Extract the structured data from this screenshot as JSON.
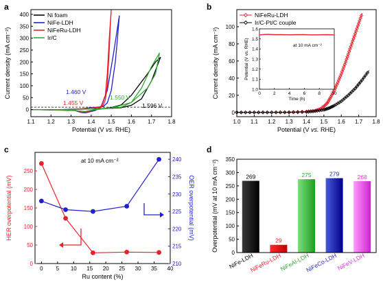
{
  "colors": {
    "black": "#000000",
    "red": "#e8202a",
    "blue": "#1f1fcf",
    "green": "#2fa82f",
    "gray": "#555555"
  },
  "chart_data": [
    {
      "panel": "a",
      "type": "line",
      "xlabel_pre": "Potential (V ",
      "xlabel_vs": "vs.",
      "xlabel_post": " RHE)",
      "ylabel": "Current density (mA cm⁻²)",
      "xlim": [
        1.1,
        1.8
      ],
      "ylim": [
        -30,
        420
      ],
      "xticks": [
        "1.1",
        "1.2",
        "1.3",
        "1.4",
        "1.5",
        "1.6",
        "1.7",
        "1.8"
      ],
      "yticks": [
        "0",
        "50",
        "100",
        "150",
        "200",
        "250",
        "300",
        "350",
        "400"
      ],
      "legend_position": "top-left",
      "legend": [
        "Ni foam",
        "NiFe-LDH",
        "NiFeRu-LDH",
        "Ir/C"
      ],
      "reference_line": 10,
      "annotations": [
        {
          "text": "1.460 V",
          "series": "NiFe-LDH"
        },
        {
          "text": "1.455 V",
          "series": "NiFeRu-LDH"
        },
        {
          "text": "1.550 V",
          "series": "Ir/C"
        },
        {
          "text": "1.596 V",
          "series": "Ni foam"
        }
      ],
      "series": [
        {
          "name": "Ni foam",
          "color": "black",
          "x": [
            1.1,
            1.25,
            1.35,
            1.4,
            1.45,
            1.5,
            1.55,
            1.6,
            1.65,
            1.7,
            1.745,
            1.72,
            1.68,
            1.6,
            1.55,
            1.5,
            1.45,
            1.4,
            1.37,
            1.35,
            1.32,
            1.25,
            1.1
          ],
          "y": [
            0,
            0,
            3,
            8,
            4,
            5,
            8,
            18,
            45,
            120,
            220,
            200,
            150,
            60,
            20,
            8,
            3,
            -4,
            -10,
            -12,
            -4,
            -2,
            0
          ]
        },
        {
          "name": "NiFe-LDH",
          "color": "blue",
          "x": [
            1.1,
            1.3,
            1.35,
            1.4,
            1.43,
            1.46,
            1.48,
            1.5,
            1.52,
            1.53,
            1.54,
            1.51,
            1.48,
            1.45,
            1.42,
            1.4,
            1.37,
            1.35,
            1.32,
            1.1
          ],
          "y": [
            0,
            0,
            2,
            8,
            10,
            12,
            28,
            80,
            200,
            290,
            395,
            230,
            80,
            10,
            -4,
            -8,
            -14,
            -12,
            -4,
            0
          ]
        },
        {
          "name": "NiFeRu-LDH",
          "color": "red",
          "x": [
            1.1,
            1.3,
            1.35,
            1.38,
            1.42,
            1.45,
            1.46,
            1.47,
            1.48,
            1.49,
            1.495,
            1.5,
            1.49,
            1.48,
            1.47,
            1.45,
            1.42,
            1.4,
            1.37,
            1.35,
            1.32,
            1.1
          ],
          "y": [
            0,
            0,
            2,
            5,
            8,
            10,
            18,
            40,
            100,
            250,
            350,
            420,
            300,
            150,
            60,
            15,
            2,
            -5,
            -12,
            -10,
            -3,
            0
          ]
        },
        {
          "name": "Ir/C",
          "color": "green",
          "x": [
            1.1,
            1.3,
            1.4,
            1.45,
            1.5,
            1.55,
            1.6,
            1.65,
            1.7,
            1.74,
            1.72,
            1.68,
            1.6,
            1.5,
            1.45,
            1.4,
            1.37,
            1.34,
            1.3,
            1.1
          ],
          "y": [
            0,
            0,
            2,
            4,
            6,
            10,
            30,
            90,
            180,
            238,
            150,
            90,
            30,
            6,
            2,
            -3,
            -8,
            -6,
            -2,
            0
          ]
        }
      ]
    },
    {
      "panel": "b",
      "type": "line",
      "xlabel_pre": "Potential (V ",
      "xlabel_vs": "vs.",
      "xlabel_post": " RHE)",
      "ylabel": "Current density (mA cm⁻²)",
      "xlim": [
        1.0,
        1.8
      ],
      "ylim": [
        -5,
        120
      ],
      "xticks": [
        "1.0",
        "1.1",
        "1.2",
        "1.3",
        "1.4",
        "1.5",
        "1.6",
        "1.7",
        "1.8"
      ],
      "yticks": [
        "0",
        "20",
        "40",
        "60",
        "80",
        "100"
      ],
      "legend_position": "top-left",
      "legend": [
        "NiFeRu-LDH",
        "Ir/C-Pt/C couple"
      ],
      "series": [
        {
          "name": "NiFeRu-LDH",
          "color": "red",
          "marker": "diamond",
          "x": [
            1.0,
            1.1,
            1.2,
            1.3,
            1.4,
            1.45,
            1.48,
            1.5,
            1.52,
            1.54,
            1.56,
            1.58,
            1.6,
            1.62,
            1.64,
            1.66,
            1.68,
            1.7,
            1.72
          ],
          "y": [
            0,
            0,
            0,
            0.3,
            1,
            2,
            4,
            7,
            11,
            18,
            26,
            35,
            45,
            56,
            68,
            80,
            92,
            104,
            116
          ]
        },
        {
          "name": "Ir/C-Pt/C couple",
          "color": "black",
          "marker": "diamond",
          "x": [
            1.0,
            1.1,
            1.2,
            1.3,
            1.4,
            1.45,
            1.5,
            1.53,
            1.56,
            1.6,
            1.64,
            1.68,
            1.72,
            1.76
          ],
          "y": [
            0,
            0,
            0,
            0,
            0.5,
            1.5,
            3,
            5,
            8,
            13,
            20,
            28,
            38,
            49
          ]
        }
      ],
      "inset": {
        "ylabel": "Potential (V vs. RHE)",
        "xlabel": "Time (h)",
        "annotation": "at 10 mA cm⁻²",
        "xlim": [
          0,
          10
        ],
        "ylim": [
          1.0,
          1.6
        ],
        "xticks": [
          "0",
          "2",
          "4",
          "6",
          "8",
          "10"
        ],
        "yticks": [
          "1.0",
          "1.1",
          "1.2",
          "1.3",
          "1.4",
          "1.5",
          "1.6"
        ],
        "x": [
          0,
          1,
          2,
          3,
          4,
          5,
          6,
          7,
          8,
          9,
          10
        ],
        "y": [
          1.54,
          1.545,
          1.542,
          1.543,
          1.541,
          1.542,
          1.543,
          1.54,
          1.541,
          1.542,
          1.54
        ]
      }
    },
    {
      "panel": "c",
      "type": "scatter",
      "xlabel": "Ru content (%)",
      "ylabel_left": "HER overpotential (mV)",
      "ylabel_right": "OER overpotential (mV)",
      "annotation": "at 10 mA cm⁻²",
      "xlim": [
        -2,
        40
      ],
      "ylim_left": [
        0,
        300
      ],
      "ylim_right": [
        210,
        242
      ],
      "xticks": [
        "0",
        "5",
        "10",
        "15",
        "20",
        "25",
        "30",
        "35",
        "40"
      ],
      "yticks_left": [
        "0",
        "50",
        "100",
        "150",
        "200",
        "250"
      ],
      "yticks_right": [
        "210",
        "215",
        "220",
        "225",
        "230",
        "235",
        "240"
      ],
      "series": [
        {
          "name": "HER",
          "axis": "left",
          "color": "red",
          "x": [
            0,
            7.5,
            16,
            26.5,
            36.5
          ],
          "y": [
            270,
            122,
            29,
            31,
            30
          ]
        },
        {
          "name": "OER",
          "axis": "right",
          "color": "blue",
          "x": [
            0,
            7.5,
            16,
            26.5,
            36.5
          ],
          "y": [
            228,
            225.5,
            225,
            226.5,
            240
          ]
        }
      ]
    },
    {
      "panel": "d",
      "type": "bar",
      "ylabel": "Overpotential (mV at 10 mA cm⁻²)",
      "ylim": [
        0,
        350
      ],
      "yticks": [
        "0",
        "50",
        "100",
        "150",
        "200",
        "250",
        "300",
        "350"
      ],
      "categories": [
        "NiFe-LDH",
        "NiFeRu-LDH",
        "NiFeAl-LDH",
        "NiFeCo-LDH",
        "NiFeV-LDH"
      ],
      "values": [
        269,
        29,
        275,
        279,
        268
      ],
      "value_labels": [
        "269",
        "29",
        "275",
        "279",
        "268"
      ],
      "bar_colors": [
        [
          "#3a3a3a",
          "#000000"
        ],
        [
          "#ff2a2a",
          "#c00000"
        ],
        [
          "#7ae07a",
          "#1e9e1e"
        ],
        [
          "#4a5ad8",
          "#00008b"
        ],
        [
          "#ff9bff",
          "#cc22cc"
        ]
      ],
      "label_colors": [
        "#000000",
        "#e8202a",
        "#2fa82f",
        "#1f1fcf",
        "#dd33dd"
      ]
    }
  ]
}
